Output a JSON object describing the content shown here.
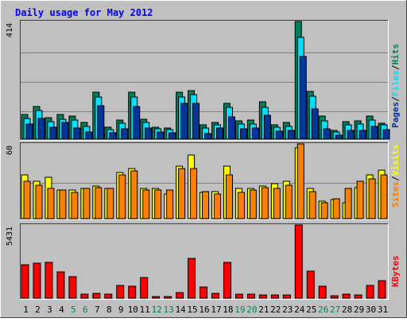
{
  "chart_data": {
    "type": "bar",
    "title": "Daily usage for May 2012",
    "days": [
      "1",
      "2",
      "3",
      "4",
      "5",
      "6",
      "7",
      "8",
      "9",
      "10",
      "11",
      "12",
      "13",
      "14",
      "15",
      "16",
      "17",
      "18",
      "19",
      "20",
      "21",
      "22",
      "23",
      "24",
      "25",
      "26",
      "27",
      "28",
      "29",
      "30",
      "31"
    ],
    "weekend_days": [
      "5",
      "6",
      "12",
      "13",
      "19",
      "20",
      "26",
      "27"
    ],
    "panels": [
      {
        "max_label": "414",
        "ymax": 414,
        "legend": [
          "Pages",
          "Files",
          "Hits"
        ],
        "series": [
          {
            "name": "Hits",
            "color": "#00805c",
            "values": [
              87,
              116,
              76,
              86,
              80,
              60,
              164,
              42,
              66,
              164,
              69,
              43,
              40,
              165,
              172,
              51,
              58,
              126,
              63,
              66,
              131,
              51,
              60,
              414,
              168,
              81,
              30,
              61,
              63,
              80,
              55
            ]
          },
          {
            "name": "Files",
            "color": "#00e0ff",
            "values": [
              72,
              100,
              61,
              71,
              66,
              45,
              149,
              33,
              55,
              149,
              59,
              37,
              34,
              149,
              157,
              40,
              50,
              111,
              53,
              53,
              113,
              42,
              46,
              357,
              151,
              64,
              24,
              49,
              53,
              67,
              50
            ]
          },
          {
            "name": "Pages",
            "color": "#00359b",
            "values": [
              52,
              72,
              41,
              58,
              40,
              25,
              118,
              21,
              35,
              115,
              40,
              26,
              21,
              127,
              125,
              19,
              38,
              78,
              35,
              38,
              85,
              28,
              32,
              291,
              105,
              37,
              13,
              32,
              30,
              45,
              33
            ]
          }
        ]
      },
      {
        "max_label": "60",
        "ymax": 60,
        "legend": [
          "Sites",
          "Visits"
        ],
        "series": [
          {
            "name": "Visits",
            "color": "#ffff00",
            "values": [
              35,
              30,
              33,
              23,
              23,
              24,
              26,
              24,
              37,
              40,
              24,
              24,
              20,
              42,
              51,
              21,
              22,
              42,
              24,
              24,
              26,
              28,
              30,
              57,
              24,
              14,
              15,
              13,
              25,
              35,
              39
            ]
          },
          {
            "name": "Sites",
            "color": "#ff8000",
            "values": [
              30,
              27,
              24,
              23,
              21,
              24,
              25,
              24,
              35,
              38,
              23,
              23,
              23,
              40,
              40,
              22,
              20,
              35,
              21,
              23,
              25,
              24,
              27,
              60,
              22,
              13,
              16,
              24,
              30,
              32,
              35
            ]
          }
        ]
      },
      {
        "max_label": "5431",
        "ymax": 5431,
        "legend": [
          "KBytes"
        ],
        "series": [
          {
            "name": "KBytes",
            "color": "#ff0000",
            "values": [
              2471,
              2626,
              2665,
              1936,
              1565,
              323,
              352,
              293,
              952,
              900,
              1555,
              125,
              130,
              427,
              2940,
              807,
              371,
              2641,
              286,
              308,
              247,
              219,
              225,
              5431,
              1992,
              859,
              158,
              281,
              223,
              966,
              1319
            ]
          }
        ]
      }
    ]
  },
  "colors": {
    "background": "#c0c0c0",
    "title": "#0000ff",
    "weekday_label": "#000000",
    "weekend_label": "#00805c",
    "slash": "#000000"
  }
}
